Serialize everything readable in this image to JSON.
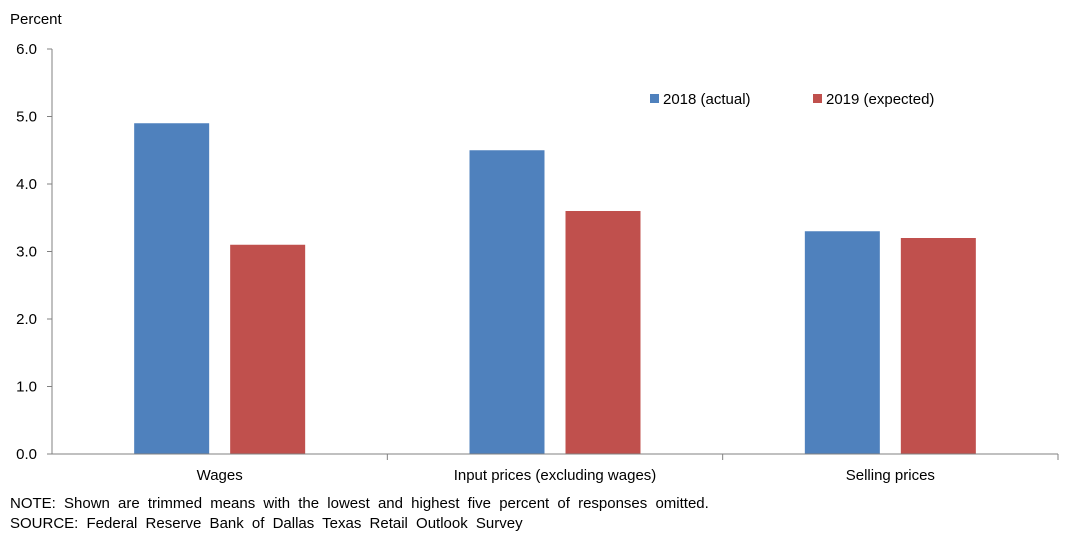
{
  "chart_data": {
    "type": "bar",
    "ylabel": "Percent",
    "ylim": [
      0,
      6
    ],
    "yticks": [
      "0.0",
      "1.0",
      "2.0",
      "3.0",
      "4.0",
      "5.0",
      "6.0"
    ],
    "categories": [
      "Wages",
      "Input prices (excluding wages)",
      "Selling prices"
    ],
    "series": [
      {
        "name": "2018 (actual)",
        "color": "#4f81bd",
        "values": [
          4.9,
          4.5,
          3.3
        ]
      },
      {
        "name": "2019 (expected)",
        "color": "#c0504d",
        "values": [
          3.1,
          3.6,
          3.2
        ]
      }
    ],
    "grid": false,
    "legend_position": "top-right"
  },
  "notes": {
    "note": "NOTE: Shown are trimmed means with the lowest and highest five percent of responses omitted.",
    "source": "SOURCE: Federal Reserve Bank of Dallas Texas Retail Outlook Survey"
  }
}
